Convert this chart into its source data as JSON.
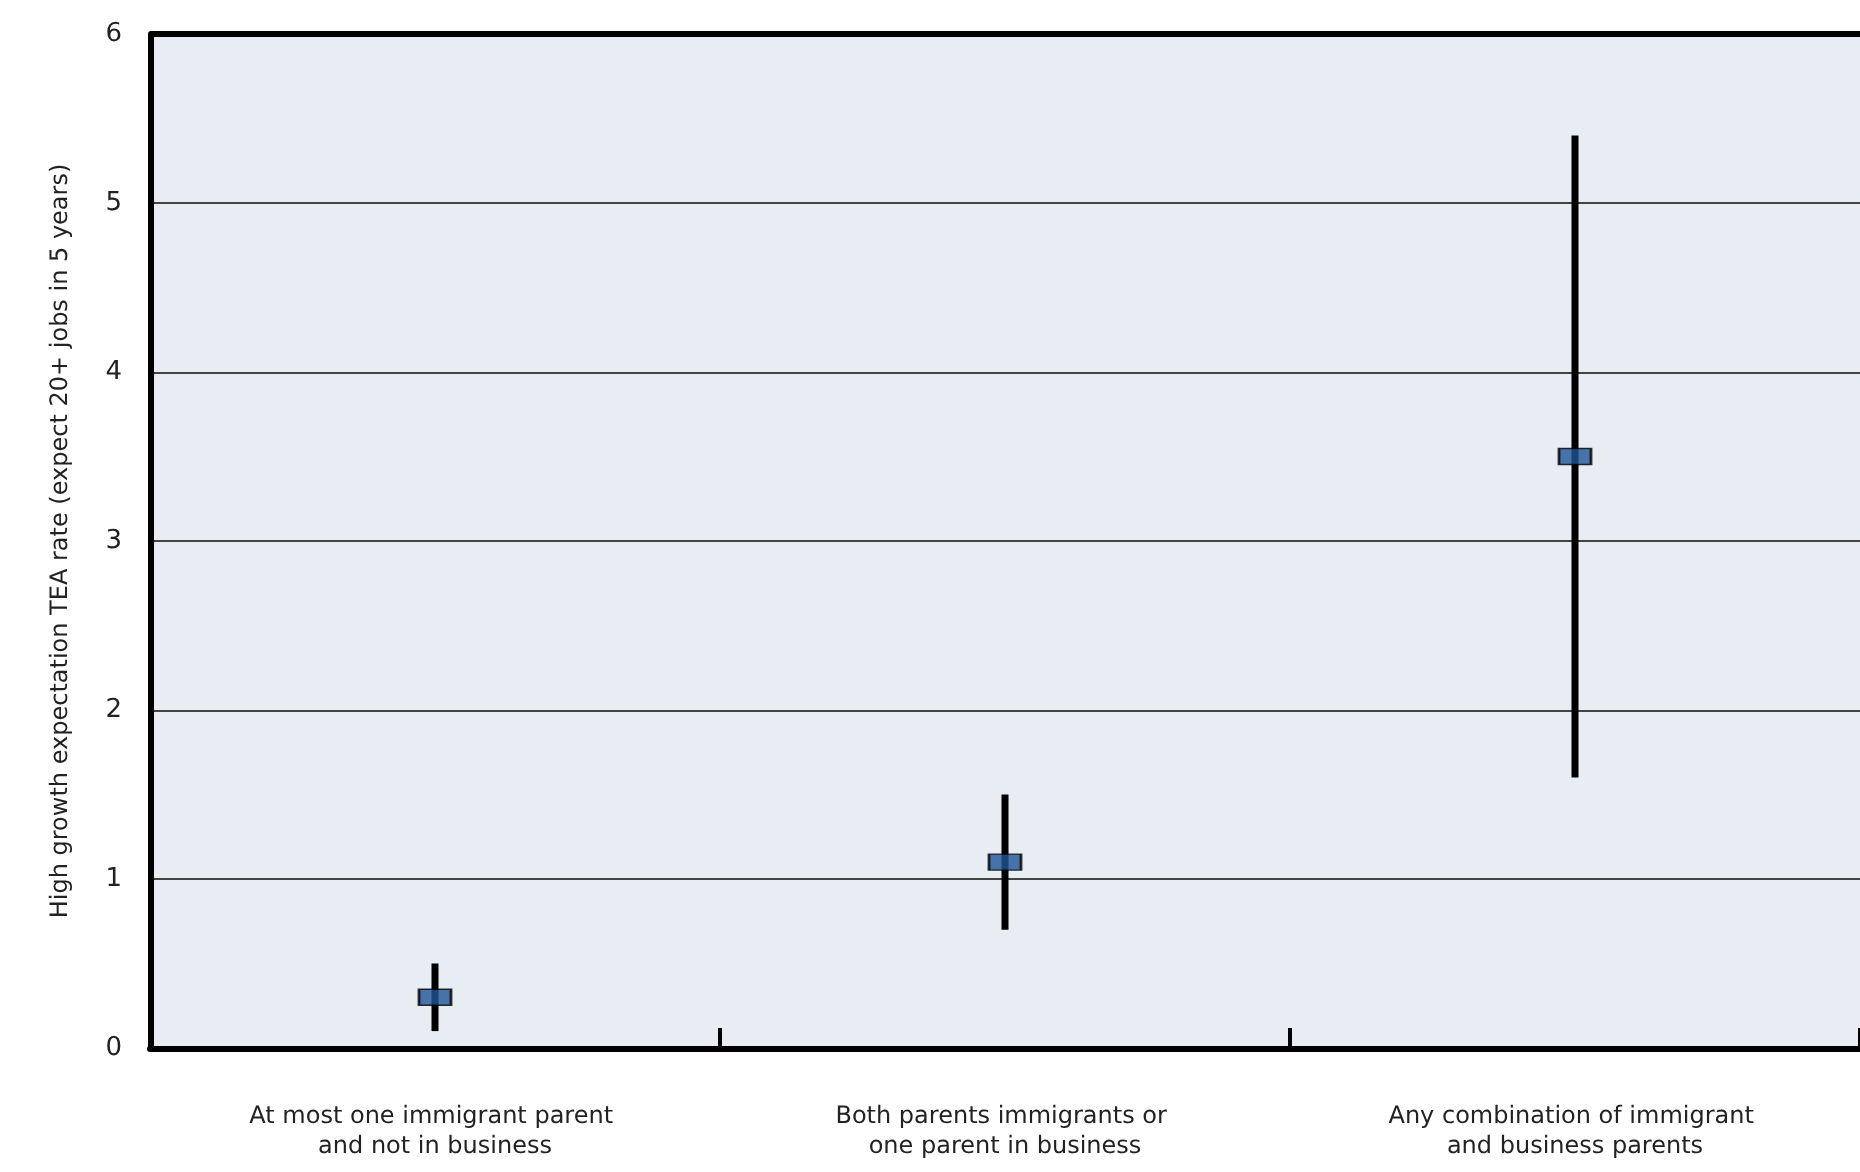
{
  "chart_data": {
    "type": "scatter",
    "ylabel": "High growth expectation TEA rate (expect 20+ jobs in 5 years)",
    "categories": [
      "At most one immigrant parent and not in business",
      "Both parents immigrants or one parent in business",
      "Any combination of immigrant and business parents"
    ],
    "values": [
      0.3,
      1.1,
      3.5
    ],
    "errors": [
      [
        0.1,
        0.5
      ],
      [
        0.7,
        1.5
      ],
      [
        1.6,
        5.4
      ]
    ],
    "color": "#1f5597",
    "marker": "square",
    "ylim": [
      0,
      6
    ],
    "yticks": [
      0,
      1,
      2,
      3,
      4,
      5,
      6
    ],
    "grid": "y"
  }
}
